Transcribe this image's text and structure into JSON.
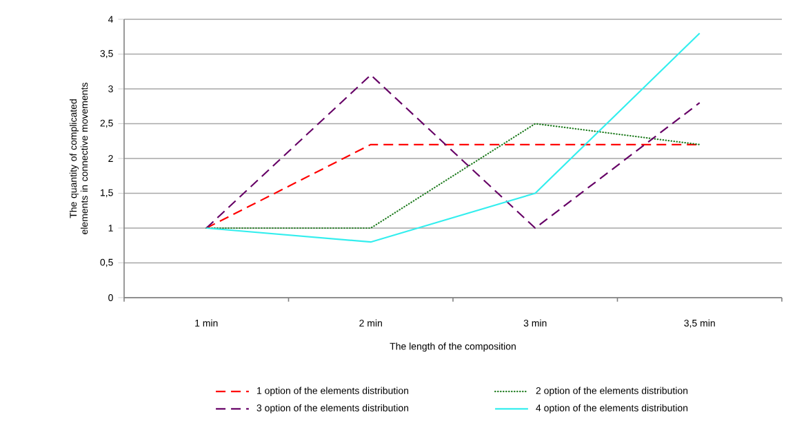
{
  "chart_data": {
    "type": "line",
    "xlabel": "The length of the composition",
    "ylabel": "The quantity of complicated elements in connective movements",
    "categories": [
      "1 min",
      "2 min",
      "3 min",
      "3,5 min"
    ],
    "ylim": [
      0,
      4
    ],
    "yticks": [
      0,
      {
        "value": 0.5,
        "label": "0,5"
      },
      1,
      {
        "value": 1.5,
        "label": "1,5"
      },
      2,
      {
        "value": 2.5,
        "label": "2,5"
      },
      3,
      {
        "value": 3.5,
        "label": "3,5"
      },
      4
    ],
    "grid": "y",
    "legend": "bottom",
    "marker": "none",
    "series": [
      {
        "name": "1 option of the elements distribution",
        "color": "#ff0000",
        "line_style": "dashed",
        "values": [
          1,
          2.2,
          2.2,
          2.2
        ]
      },
      {
        "name": "2 option of the elements distribution",
        "color": "#1e7b1e",
        "line_style": "dotted",
        "values": [
          1,
          1,
          2.5,
          2.2
        ]
      },
      {
        "name": "3 option of the elements distribution",
        "color": "#660066",
        "line_style": "dashed",
        "values": [
          1,
          3.2,
          1,
          2.8
        ]
      },
      {
        "name": "4 option of the elements distribution",
        "color": "#33eeee",
        "line_style": "solid",
        "values": [
          1,
          0.8,
          1.5,
          3.8
        ]
      }
    ]
  }
}
